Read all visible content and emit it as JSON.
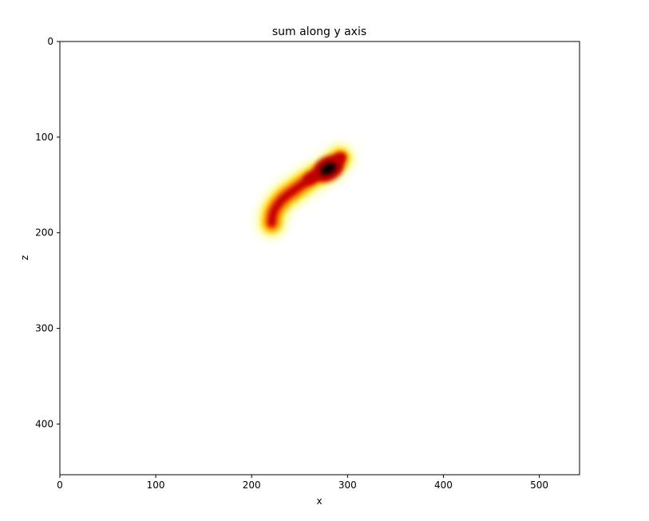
{
  "chart_data": {
    "type": "heatmap",
    "title": "sum along y axis",
    "xlabel": "x",
    "ylabel": "z",
    "xlim": [
      0,
      542
    ],
    "ylim": [
      453,
      0
    ],
    "y_axis_inverted": true,
    "grid": false,
    "legend": "none",
    "colormap": "hot_r",
    "colormap_stops": [
      "#ffffff",
      "#ffff60",
      "#ffd000",
      "#ff5000",
      "#c00000",
      "#300000",
      "#000000"
    ],
    "xticks": [
      0,
      100,
      200,
      300,
      400,
      500
    ],
    "yticks": [
      0,
      100,
      200,
      300,
      400
    ],
    "data_path": {
      "description_units": "x, z in data units along the ridge; value = relative intensity 0-1",
      "points": [
        {
          "x": 221,
          "z": 190,
          "value": 0.55
        },
        {
          "x": 223,
          "z": 178,
          "value": 0.6
        },
        {
          "x": 232,
          "z": 165,
          "value": 0.62
        },
        {
          "x": 245,
          "z": 155,
          "value": 0.65
        },
        {
          "x": 262,
          "z": 143,
          "value": 0.75
        },
        {
          "x": 280,
          "z": 133,
          "value": 1.0
        },
        {
          "x": 292,
          "z": 122,
          "value": 0.7
        }
      ]
    }
  }
}
